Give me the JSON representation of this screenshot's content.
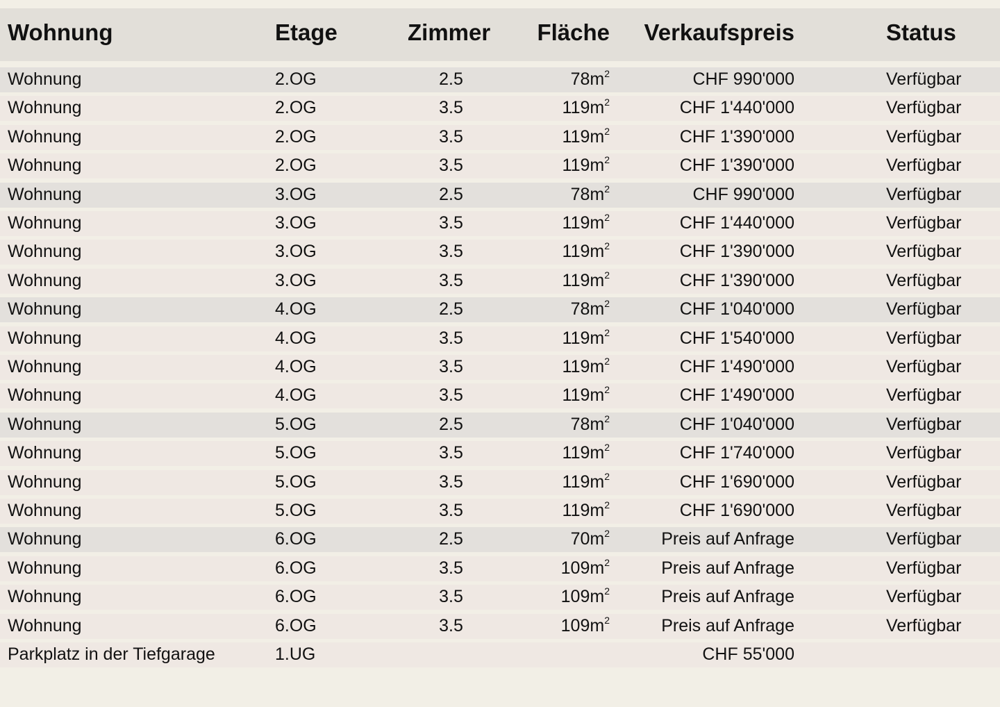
{
  "columns": [
    "Wohnung",
    "Etage",
    "Zimmer",
    "Fläche",
    "Verkaufspreis",
    "Status"
  ],
  "area_unit": "m",
  "area_exponent": "2",
  "rows": [
    {
      "type": "Wohnung",
      "floor": "2.OG",
      "rooms": "2.5",
      "area": "78",
      "price": "CHF 990'000",
      "status": "Verfügbar",
      "highlight": true
    },
    {
      "type": "Wohnung",
      "floor": "2.OG",
      "rooms": "3.5",
      "area": "119",
      "price": "CHF 1'440'000",
      "status": "Verfügbar",
      "highlight": false
    },
    {
      "type": "Wohnung",
      "floor": "2.OG",
      "rooms": "3.5",
      "area": "119",
      "price": "CHF 1'390'000",
      "status": "Verfügbar",
      "highlight": false
    },
    {
      "type": "Wohnung",
      "floor": "2.OG",
      "rooms": "3.5",
      "area": "119",
      "price": "CHF 1'390'000",
      "status": "Verfügbar",
      "highlight": false
    },
    {
      "type": "Wohnung",
      "floor": "3.OG",
      "rooms": "2.5",
      "area": "78",
      "price": "CHF 990'000",
      "status": "Verfügbar",
      "highlight": true
    },
    {
      "type": "Wohnung",
      "floor": "3.OG",
      "rooms": "3.5",
      "area": "119",
      "price": "CHF 1'440'000",
      "status": "Verfügbar",
      "highlight": false
    },
    {
      "type": "Wohnung",
      "floor": "3.OG",
      "rooms": "3.5",
      "area": "119",
      "price": "CHF 1'390'000",
      "status": "Verfügbar",
      "highlight": false
    },
    {
      "type": "Wohnung",
      "floor": "3.OG",
      "rooms": "3.5",
      "area": "119",
      "price": "CHF 1'390'000",
      "status": "Verfügbar",
      "highlight": false
    },
    {
      "type": "Wohnung",
      "floor": "4.OG",
      "rooms": "2.5",
      "area": "78",
      "price": "CHF 1'040'000",
      "status": "Verfügbar",
      "highlight": true
    },
    {
      "type": "Wohnung",
      "floor": "4.OG",
      "rooms": "3.5",
      "area": "119",
      "price": "CHF 1'540'000",
      "status": "Verfügbar",
      "highlight": false
    },
    {
      "type": "Wohnung",
      "floor": "4.OG",
      "rooms": "3.5",
      "area": "119",
      "price": "CHF 1'490'000",
      "status": "Verfügbar",
      "highlight": false
    },
    {
      "type": "Wohnung",
      "floor": "4.OG",
      "rooms": "3.5",
      "area": "119",
      "price": "CHF 1'490'000",
      "status": "Verfügbar",
      "highlight": false
    },
    {
      "type": "Wohnung",
      "floor": "5.OG",
      "rooms": "2.5",
      "area": "78",
      "price": "CHF 1'040'000",
      "status": "Verfügbar",
      "highlight": true
    },
    {
      "type": "Wohnung",
      "floor": "5.OG",
      "rooms": "3.5",
      "area": "119",
      "price": "CHF 1'740'000",
      "status": "Verfügbar",
      "highlight": false
    },
    {
      "type": "Wohnung",
      "floor": "5.OG",
      "rooms": "3.5",
      "area": "119",
      "price": "CHF 1'690'000",
      "status": "Verfügbar",
      "highlight": false
    },
    {
      "type": "Wohnung",
      "floor": "5.OG",
      "rooms": "3.5",
      "area": "119",
      "price": "CHF 1'690'000",
      "status": "Verfügbar",
      "highlight": false
    },
    {
      "type": "Wohnung",
      "floor": "6.OG",
      "rooms": "2.5",
      "area": "70",
      "price": "Preis auf Anfrage",
      "status": "Verfügbar",
      "highlight": true
    },
    {
      "type": "Wohnung",
      "floor": "6.OG",
      "rooms": "3.5",
      "area": "109",
      "price": "Preis auf Anfrage",
      "status": "Verfügbar",
      "highlight": false
    },
    {
      "type": "Wohnung",
      "floor": "6.OG",
      "rooms": "3.5",
      "area": "109",
      "price": "Preis auf Anfrage",
      "status": "Verfügbar",
      "highlight": false
    },
    {
      "type": "Wohnung",
      "floor": "6.OG",
      "rooms": "3.5",
      "area": "109",
      "price": "Preis auf Anfrage",
      "status": "Verfügbar",
      "highlight": false
    },
    {
      "type": "Parkplatz in der Tiefgarage",
      "floor": "1.UG",
      "rooms": "",
      "area": "",
      "price": "CHF 55'000",
      "status": "",
      "highlight": false
    }
  ],
  "colors": {
    "background": "#f2efe6",
    "header": "#e2dfd9",
    "row": "#efe8e3",
    "row_highlight": "#e3e0dc",
    "text": "#111111"
  }
}
